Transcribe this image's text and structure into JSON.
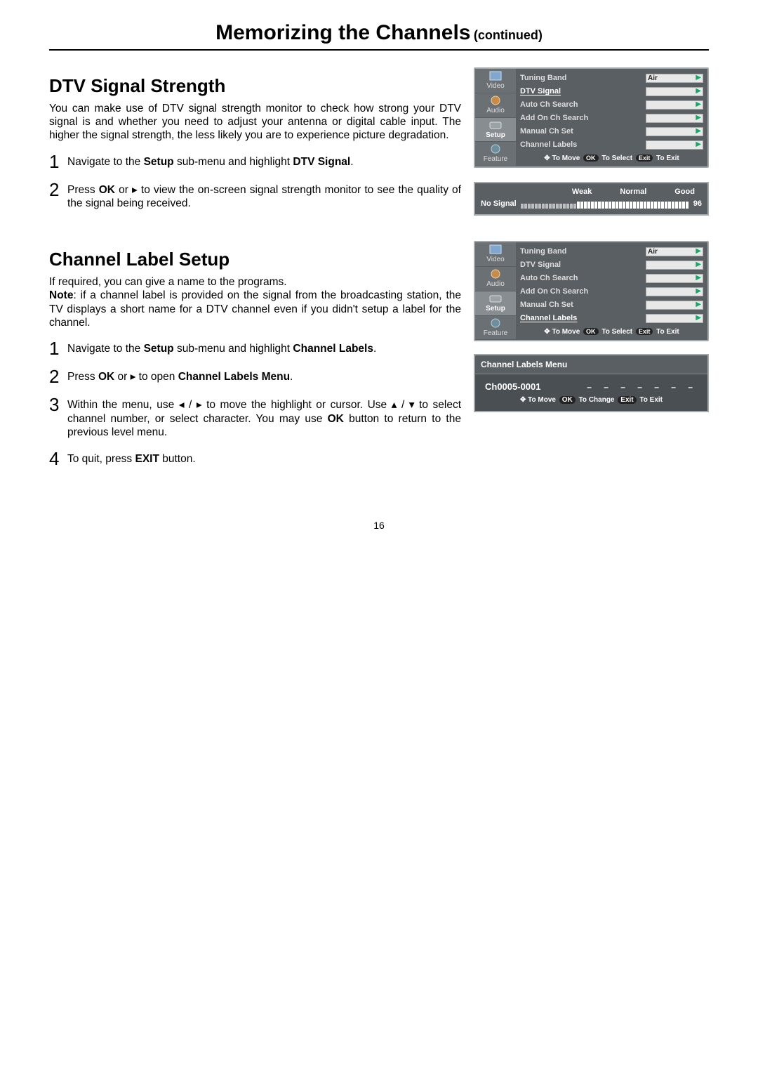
{
  "page": {
    "title": "Memorizing the Channels",
    "title_sub": "(continued)",
    "number": "16"
  },
  "section1": {
    "heading": "DTV Signal Strength",
    "intro": "You can make use of DTV signal strength monitor to check how strong your DTV signal is and whether you need to adjust your antenna or digital cable input. The higher the signal strength, the less likely you are to experience picture degradation.",
    "steps": [
      {
        "num": "1",
        "pre": "Navigate to the ",
        "b1": "Setup",
        "mid": " sub-menu and highlight ",
        "b2": "DTV Signal",
        "post": "."
      },
      {
        "num": "2",
        "pre": "Press ",
        "b1": "OK",
        "mid": "  or  ▸  to view the on-screen signal strength monitor to see the quality of the signal being received.",
        "b2": "",
        "post": ""
      }
    ]
  },
  "section2": {
    "heading": "Channel Label Setup",
    "intro1": "If required, you can give a name to the programs.",
    "note_label": "Note",
    "intro2": ": if a channel label is provided on the signal from the broadcasting station, the TV displays a short name for a DTV channel even if you didn't setup a label for the channel.",
    "steps": [
      {
        "num": "1",
        "txt_pre": "Navigate to the ",
        "txt_b1": "Setup",
        "txt_mid": " sub-menu and highlight ",
        "txt_b2": "Channel Labels",
        "txt_post": "."
      },
      {
        "num": "2",
        "txt_pre": "Press ",
        "txt_b1": "OK",
        "txt_mid": "  or  ▸  to open ",
        "txt_b2": "Channel Labels Menu",
        "txt_post": "."
      },
      {
        "num": "3",
        "txt_pre": "Within the menu, use  ◂ / ▸  to move the highlight or cursor. Use  ▴ / ▾  to  select channel number, or select character. You may use ",
        "txt_b1": "OK",
        "txt_mid": " button to return to the previous level menu.",
        "txt_b2": "",
        "txt_post": ""
      },
      {
        "num": "4",
        "txt_pre": "To quit, press ",
        "txt_b1": "EXIT",
        "txt_mid": " button.",
        "txt_b2": "",
        "txt_post": ""
      }
    ]
  },
  "osd": {
    "tabs": [
      "Video",
      "Audio",
      "Setup",
      "Feature"
    ],
    "items": [
      {
        "label": "Tuning Band",
        "value": "Air"
      },
      {
        "label": "DTV Signal",
        "value": ""
      },
      {
        "label": "Auto Ch Search",
        "value": ""
      },
      {
        "label": "Add On Ch Search",
        "value": ""
      },
      {
        "label": "Manual Ch Set",
        "value": ""
      },
      {
        "label": "Channel Labels",
        "value": ""
      }
    ],
    "footer_move": "To Move",
    "footer_ok": "OK",
    "footer_select": "To Select",
    "footer_exit": "Exit",
    "footer_toexit": "To Exit"
  },
  "signal": {
    "no_signal": "No Signal",
    "weak": "Weak",
    "normal": "Normal",
    "good": "Good",
    "value": "96"
  },
  "clm": {
    "title": "Channel Labels Menu",
    "channel": "Ch0005-0001",
    "dashes": "– – – – – – –",
    "foot_move": "To Move",
    "foot_ok": "OK",
    "foot_change": "To Change",
    "foot_exit": "Exit",
    "foot_toexit": "To Exit"
  },
  "osd1_highlight_index": 1,
  "osd2_highlight_index": 5
}
